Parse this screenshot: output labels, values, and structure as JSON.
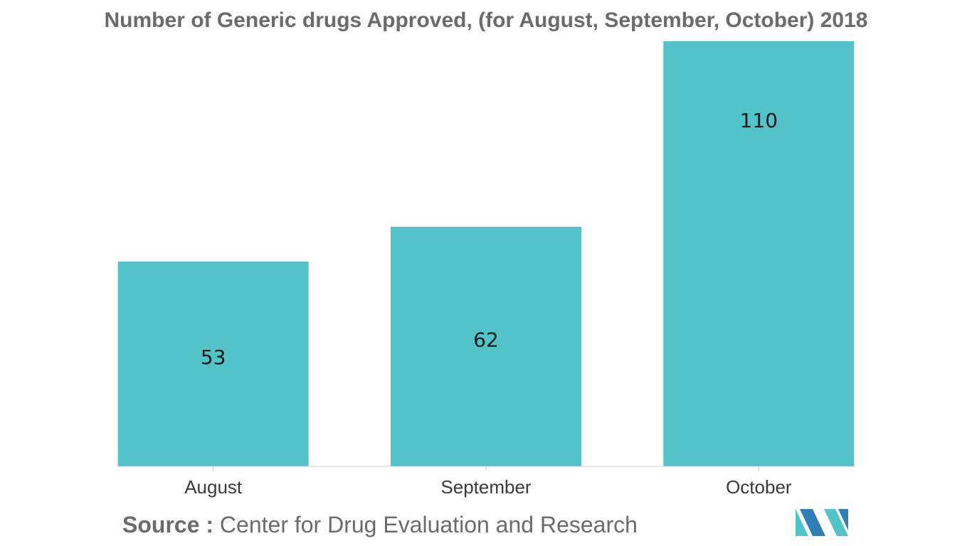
{
  "chart_data": {
    "type": "bar",
    "title": "Number of Generic drugs Approved, (for August, September, October) 2018",
    "categories": [
      "August",
      "September",
      "October"
    ],
    "values": [
      53,
      62,
      110
    ],
    "ylim": [
      0,
      110
    ],
    "xlabel": "",
    "ylabel": "",
    "grid": false,
    "legend": "none",
    "bar_color": "#52c3c9",
    "label_color": "#1a1a1a",
    "tick_label_color": "#3a3a3a",
    "axis_color": "#cccccc"
  },
  "source": {
    "prefix": "Source :",
    "text": "Center for Drug Evaluation and Research"
  },
  "logo": {
    "icon": "mordor-intelligence-logo-icon",
    "colors": [
      "#52c3c9",
      "#2f7fb8"
    ]
  }
}
